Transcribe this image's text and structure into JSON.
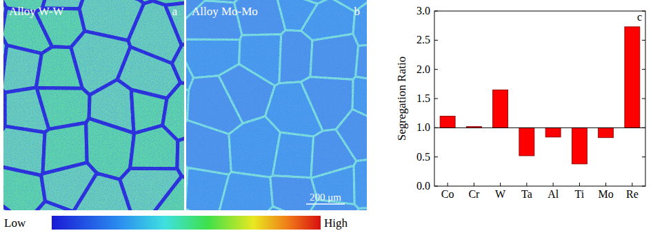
{
  "maps": [
    {
      "title": "Alloy W-W",
      "letter": "a"
    },
    {
      "title": "Alloy Mo-Mo",
      "letter": "b"
    }
  ],
  "scale_bar": "200 μm",
  "color_scale": {
    "low": "Low",
    "high": "High"
  },
  "chart_letter": "c",
  "chart_data": {
    "type": "bar",
    "y_label": "Segregation Ratio",
    "categories": [
      "Co",
      "Cr",
      "W",
      "Ta",
      "Al",
      "Ti",
      "Mo",
      "Re"
    ],
    "values": [
      1.2,
      1.02,
      1.65,
      0.52,
      0.84,
      0.38,
      0.83,
      2.73
    ],
    "baseline": 1.0,
    "color": "#ff0000",
    "ylim": [
      0,
      3
    ],
    "yticks": [
      {
        "value": 0,
        "label": "0.0"
      },
      0.5,
      {
        "value": 1,
        "label": "1.0"
      },
      1.5,
      {
        "value": 2,
        "label": "2.0"
      },
      2.5,
      {
        "value": 3,
        "label": "3.0"
      }
    ],
    "grid": false
  }
}
